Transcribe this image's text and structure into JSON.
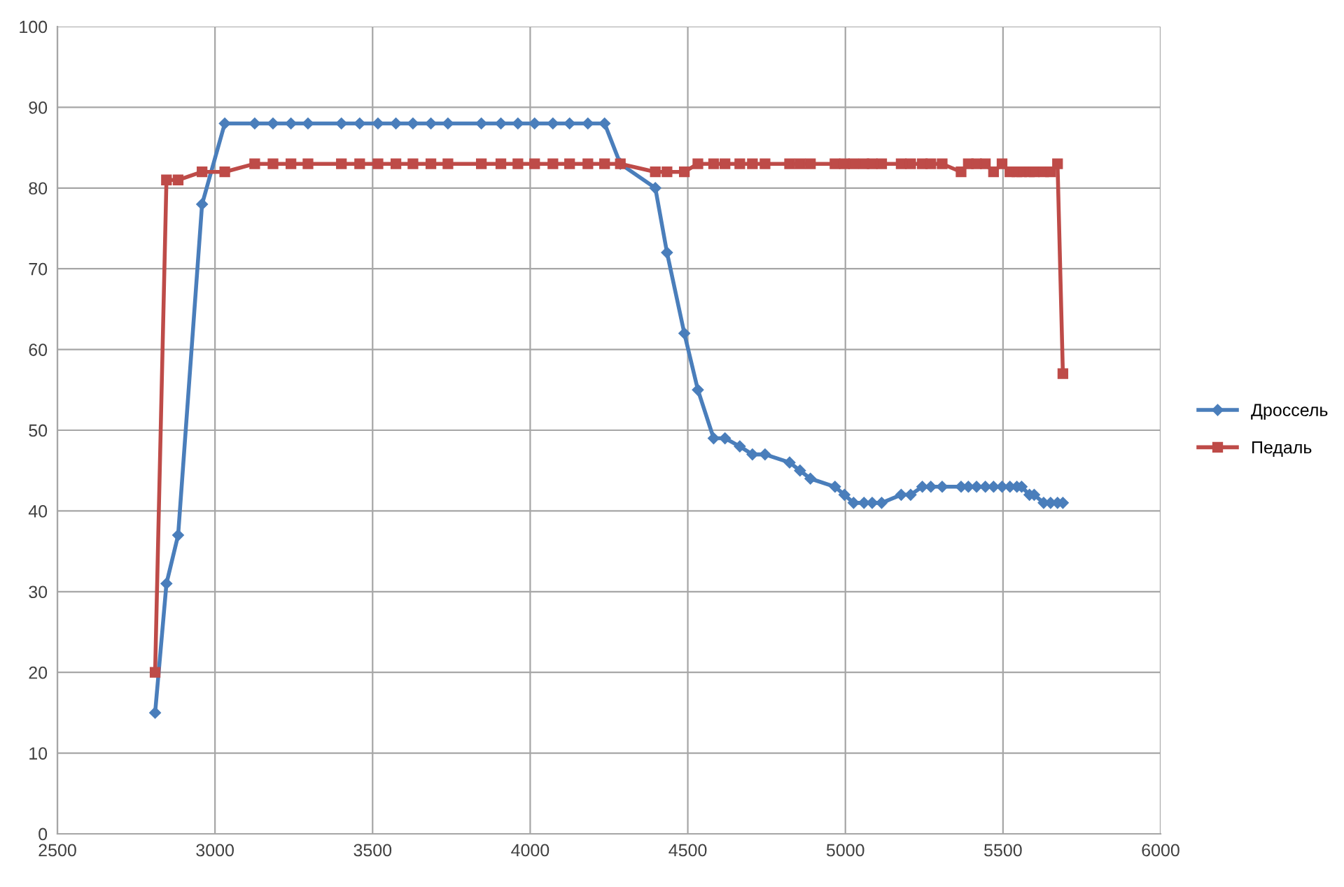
{
  "chart_data": {
    "type": "line",
    "x": [
      2810,
      2846,
      2883,
      2959,
      3031,
      3126,
      3184,
      3241,
      3295,
      3401,
      3459,
      3517,
      3574,
      3628,
      3685,
      3739,
      3845,
      3907,
      3961,
      4014,
      4072,
      4125,
      4183,
      4236,
      4286,
      4397,
      4434,
      4489,
      4532,
      4582,
      4618,
      4665,
      4705,
      4745,
      4823,
      4856,
      4889,
      4967,
      4997,
      5026,
      5059,
      5085,
      5115,
      5177,
      5207,
      5244,
      5271,
      5307,
      5367,
      5390,
      5416,
      5444,
      5470,
      5497,
      5522,
      5544,
      5559,
      5584,
      5599,
      5629,
      5651,
      5673,
      5690
    ],
    "series": [
      {
        "name": "Дроссель",
        "color": "#4a7ebb",
        "marker": "diamond",
        "values": [
          15,
          31,
          37,
          78,
          88,
          88,
          88,
          88,
          88,
          88,
          88,
          88,
          88,
          88,
          88,
          88,
          88,
          88,
          88,
          88,
          88,
          88,
          88,
          88,
          83,
          80,
          72,
          62,
          55,
          49,
          49,
          48,
          47,
          47,
          46,
          45,
          44,
          43,
          42,
          41,
          41,
          41,
          41,
          42,
          42,
          43,
          43,
          43,
          43,
          43,
          43,
          43,
          43,
          43,
          43,
          43,
          43,
          42,
          42,
          41,
          41,
          41,
          41
        ]
      },
      {
        "name": "Педаль",
        "color": "#be4b48",
        "marker": "square",
        "values": [
          20,
          81,
          81,
          82,
          82,
          83,
          83,
          83,
          83,
          83,
          83,
          83,
          83,
          83,
          83,
          83,
          83,
          83,
          83,
          83,
          83,
          83,
          83,
          83,
          83,
          82,
          82,
          82,
          83,
          83,
          83,
          83,
          83,
          83,
          83,
          83,
          83,
          83,
          83,
          83,
          83,
          83,
          83,
          83,
          83,
          83,
          83,
          83,
          82,
          83,
          83,
          83,
          82,
          83,
          82,
          82,
          82,
          82,
          82,
          82,
          82,
          83,
          57
        ]
      }
    ],
    "xlim": [
      2500,
      6000
    ],
    "xticks": [
      2500,
      3000,
      3500,
      4000,
      4500,
      5000,
      5500,
      6000
    ],
    "ylim": [
      0,
      100
    ],
    "yticks": [
      0,
      10,
      20,
      30,
      40,
      50,
      60,
      70,
      80,
      90,
      100
    ],
    "grid": true,
    "legend": "right",
    "line_style": "solid"
  }
}
